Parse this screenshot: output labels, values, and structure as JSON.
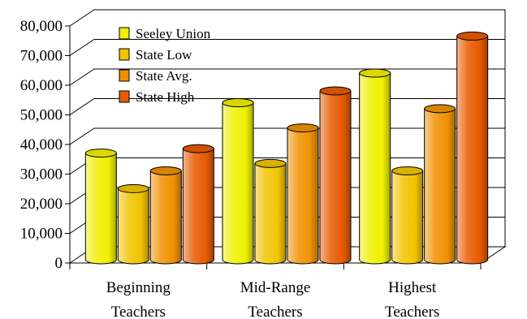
{
  "chart_data": {
    "type": "bar",
    "style": "3d-cylinder",
    "categories": [
      [
        "Beginning",
        "Teachers"
      ],
      [
        "Mid-Range",
        "Teachers"
      ],
      [
        "Highest",
        "Teachers"
      ]
    ],
    "series": [
      {
        "name": "Seeley Union",
        "color": "#f0f000",
        "values": [
          36000,
          53000,
          63000
        ]
      },
      {
        "name": "State Low",
        "color": "#f2c400",
        "values": [
          24000,
          32500,
          30000
        ]
      },
      {
        "name": "State Avg.",
        "color": "#f09000",
        "values": [
          30000,
          44500,
          51000
        ]
      },
      {
        "name": "State High",
        "color": "#e85a00",
        "values": [
          37500,
          57000,
          75500
        ]
      }
    ],
    "y_ticks": [
      "0",
      "10,000",
      "20,000",
      "30,000",
      "40,000",
      "50,000",
      "60,000",
      "70,000",
      "80,000"
    ],
    "ylim": [
      0,
      80000
    ],
    "grid": true,
    "legend": "top-left"
  }
}
